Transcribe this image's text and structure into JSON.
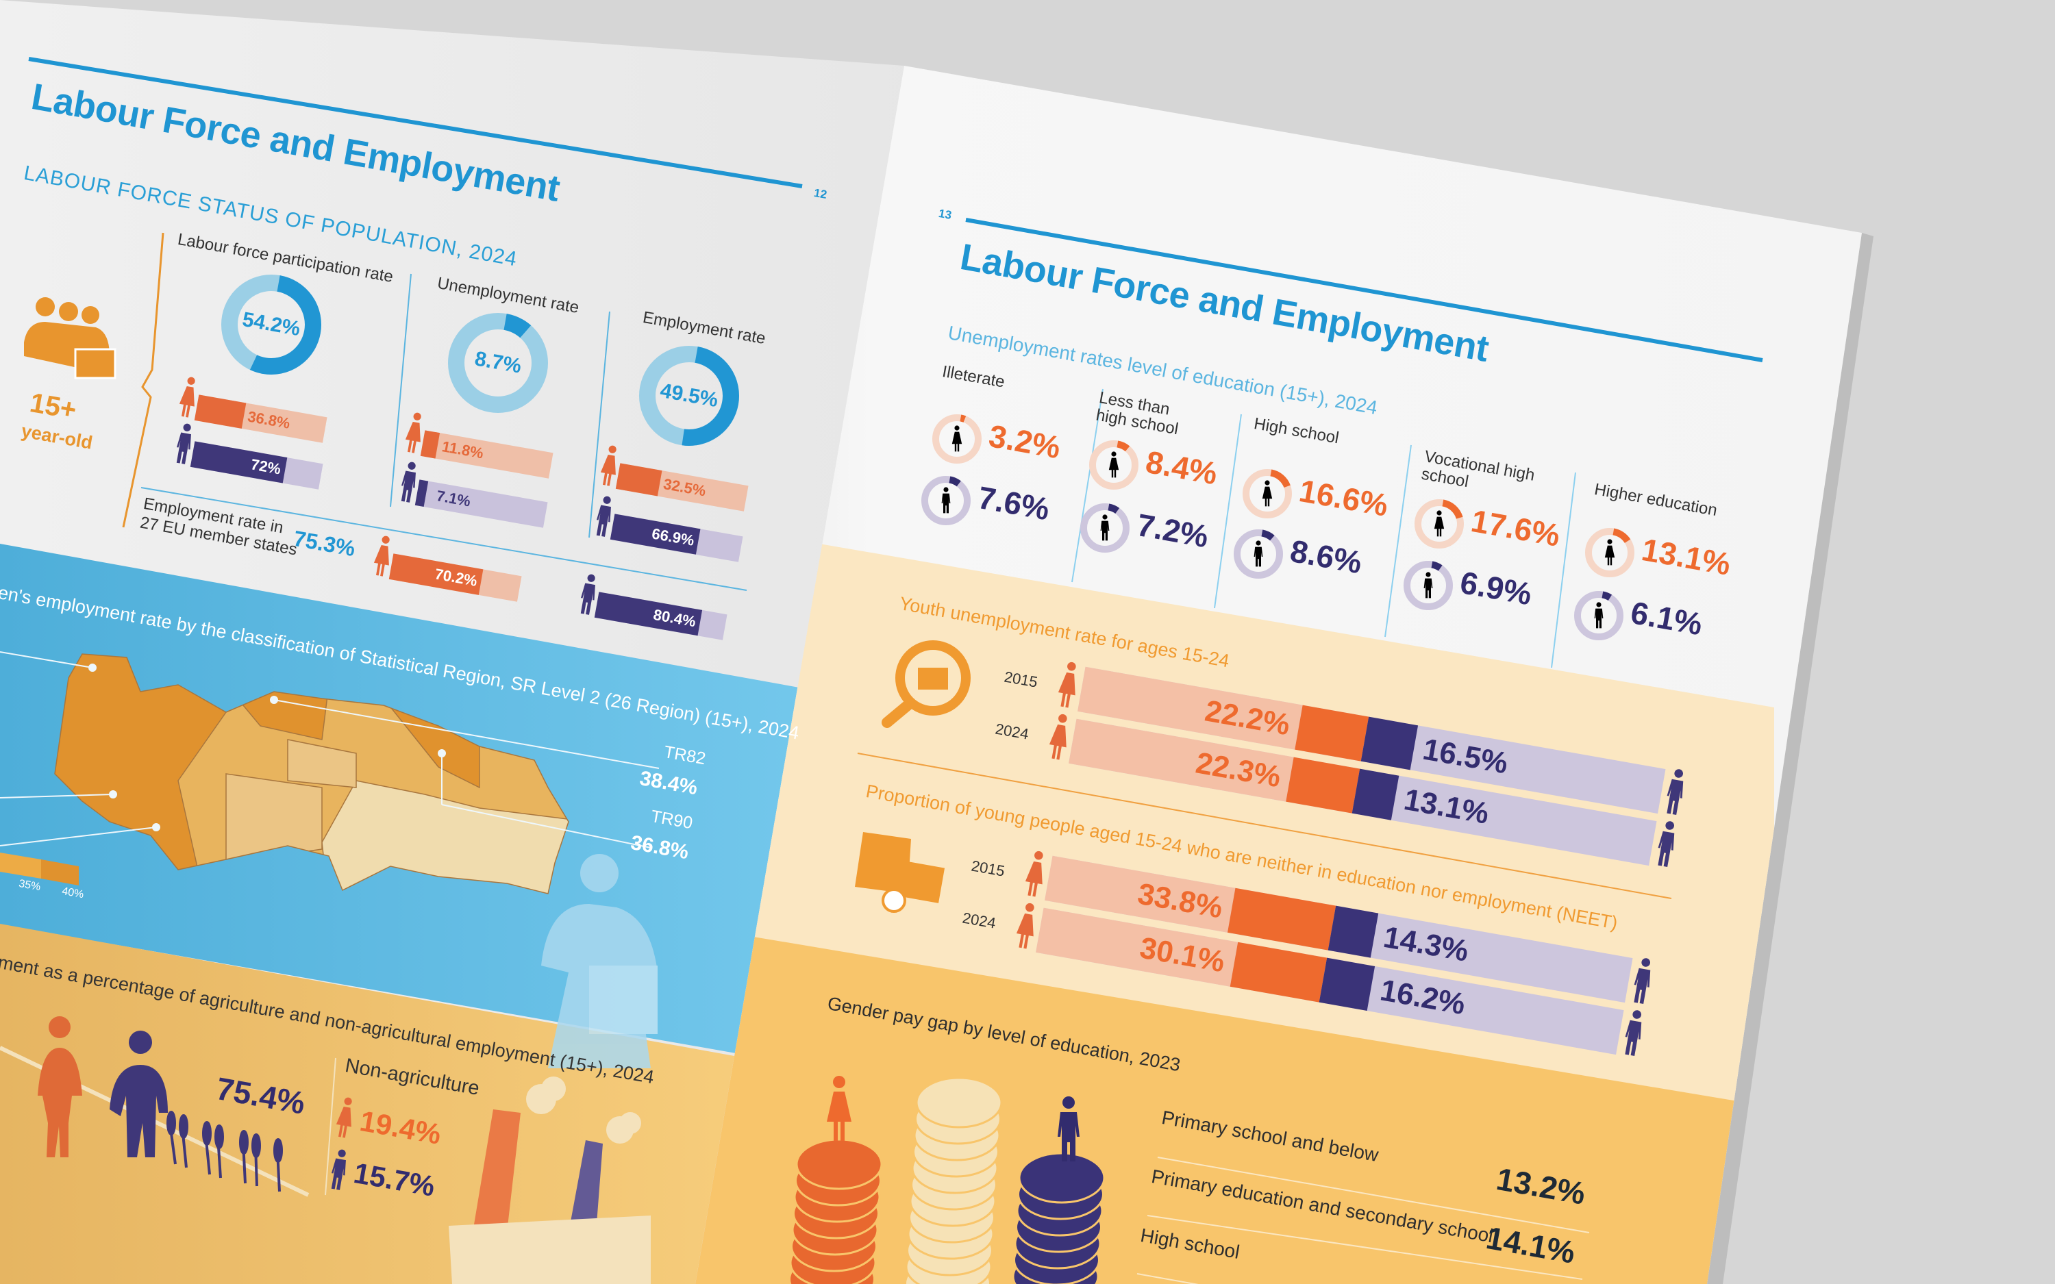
{
  "colors": {
    "blue": "#1f95d2",
    "orange": "#ee6a2e",
    "navy": "#322c6e",
    "gold": "#e8952e"
  },
  "left_page": {
    "page_number": "12",
    "title": "Labour Force and Employment",
    "section_title": "LABOUR FORCE STATUS OF POPULATION, 2024",
    "age_group": {
      "value": "15+",
      "label": "year-old"
    },
    "metrics": [
      {
        "label": "Labour force participation rate",
        "total": "54.2%",
        "total_value": 54.2,
        "female": "36.8%",
        "female_value": 36.8,
        "male": "72%",
        "male_value": 72
      },
      {
        "label": "Unemployment rate",
        "total": "8.7%",
        "total_value": 8.7,
        "female": "11.8%",
        "female_value": 11.8,
        "male": "7.1%",
        "male_value": 7.1
      },
      {
        "label": "Employment rate",
        "total": "49.5%",
        "total_value": 49.5,
        "female": "32.5%",
        "female_value": 32.5,
        "male": "66.9%",
        "male_value": 66.9
      }
    ],
    "eu": {
      "label_line1": "Employment rate in",
      "label_line2": "27 EU member states",
      "total": "75.3%",
      "female": "70.2%",
      "female_value": 70.2,
      "male": "80.4%",
      "male_value": 80.4
    },
    "map_section": {
      "title": "en's employment rate by the classification of Statistical Region, SR Level 2 (26 Region) (15+), 2024",
      "regions": [
        {
          "code": "TR82",
          "value": "38.4%"
        },
        {
          "code": "TR90",
          "value": "36.8%"
        }
      ],
      "legend": [
        "35%",
        "40%"
      ]
    },
    "agri_section": {
      "title": "ment as a percentage of agriculture and non-agricultural employment (15+), 2024",
      "agriculture_value": "75.4%",
      "non_agri_label": "Non-agriculture",
      "female": "19.4%",
      "male": "15.7%"
    }
  },
  "right_page": {
    "page_number": "13",
    "title": "Labour Force and Employment",
    "section_title": "Unemployment rates level of education (15+), 2024",
    "education": [
      {
        "label1": "Illeterate",
        "label2": "",
        "female": "3.2%",
        "female_value": 3.2,
        "male": "7.6%",
        "male_value": 7.6
      },
      {
        "label1": "Less than",
        "label2": "high school",
        "female": "8.4%",
        "female_value": 8.4,
        "male": "7.2%",
        "male_value": 7.2
      },
      {
        "label1": "High school",
        "label2": "",
        "female": "16.6%",
        "female_value": 16.6,
        "male": "8.6%",
        "male_value": 8.6
      },
      {
        "label1": "Vocational high",
        "label2": "school",
        "female": "17.6%",
        "female_value": 17.6,
        "male": "6.9%",
        "male_value": 6.9
      },
      {
        "label1": "Higher education",
        "label2": "",
        "female": "13.1%",
        "female_value": 13.1,
        "male": "6.1%",
        "male_value": 6.1
      }
    ],
    "youth": {
      "title": "Youth unemployment rate for ages 15-24",
      "rows": [
        {
          "year": "2015",
          "female": "22.2%",
          "female_value": 22.2,
          "male": "16.5%",
          "male_value": 16.5
        },
        {
          "year": "2024",
          "female": "22.3%",
          "female_value": 22.3,
          "male": "13.1%",
          "male_value": 13.1
        }
      ]
    },
    "neet": {
      "title": "Proportion of young people aged 15-24 who are neither in education nor employment (NEET)",
      "rows": [
        {
          "year": "2015",
          "female": "33.8%",
          "female_value": 33.8,
          "male": "14.3%",
          "male_value": 14.3
        },
        {
          "year": "2024",
          "female": "30.1%",
          "female_value": 30.1,
          "male": "16.2%",
          "male_value": 16.2
        }
      ]
    },
    "pay_gap": {
      "title": "Gender pay gap by level of education, 2023",
      "rows": [
        {
          "label": "Primary school and below",
          "value": "13.2%"
        },
        {
          "label": "Primary education and secondary school",
          "value": "14.1%"
        },
        {
          "label": "High school",
          "value": ""
        }
      ]
    }
  }
}
